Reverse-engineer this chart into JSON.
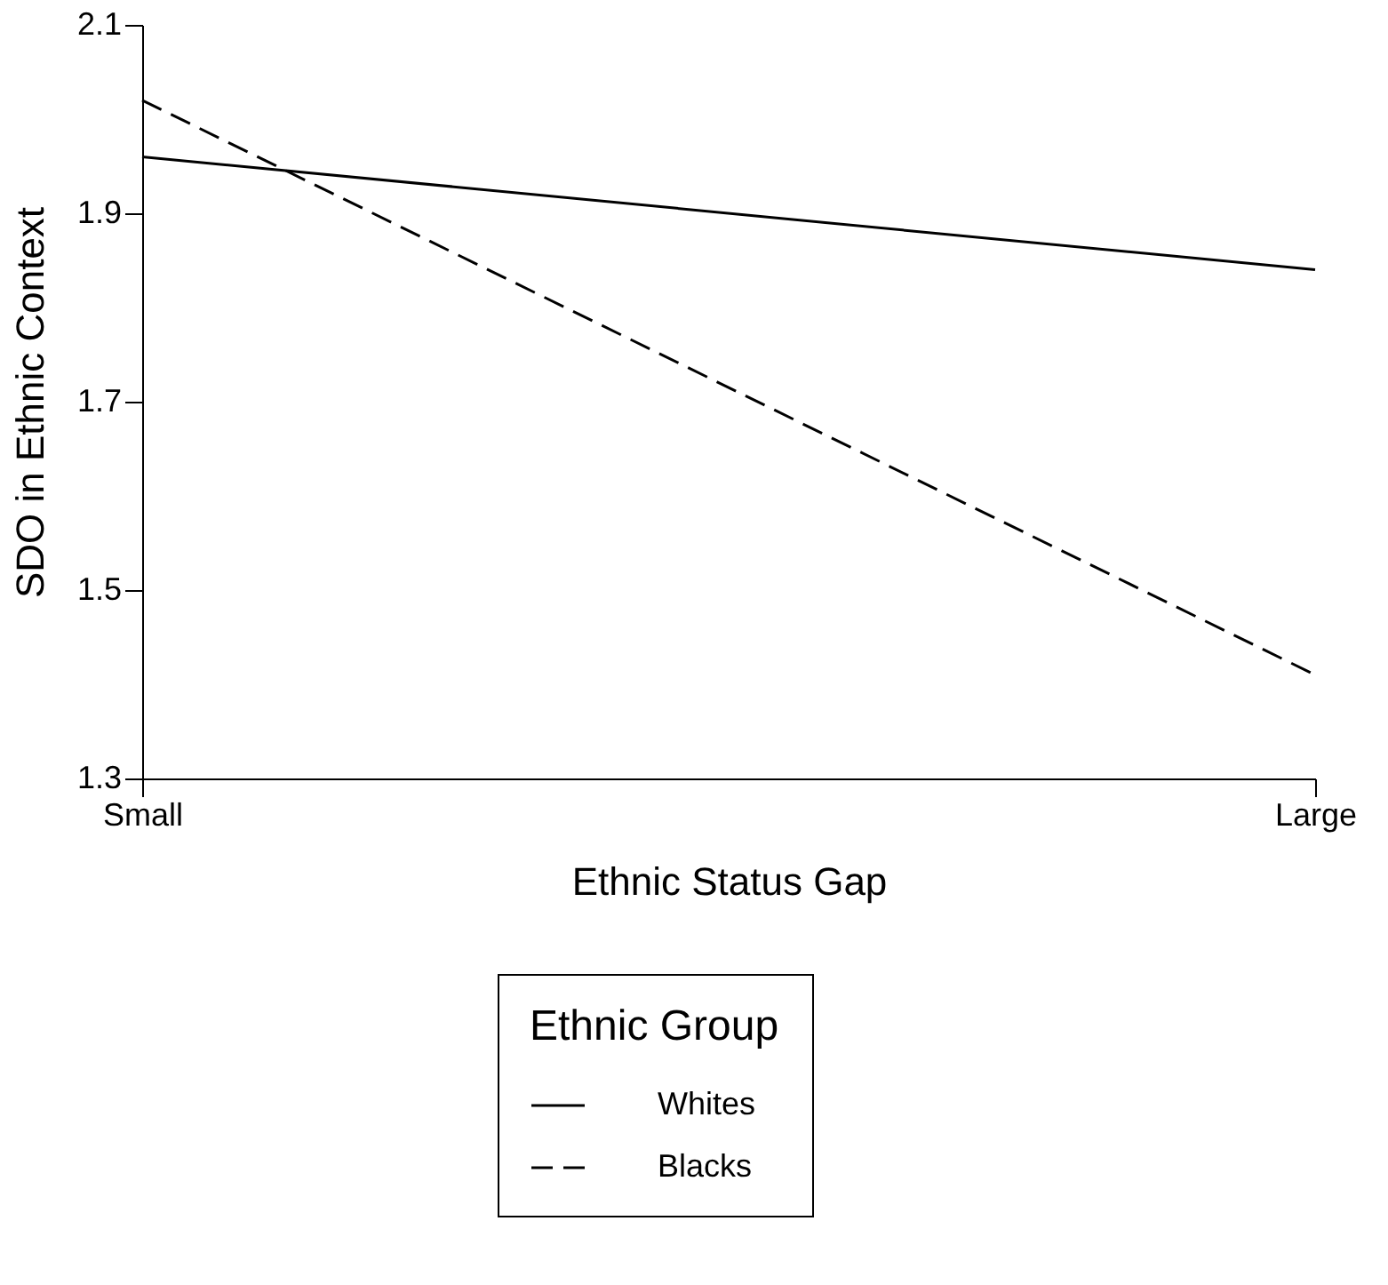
{
  "chart_data": {
    "type": "line",
    "xlabel": "Ethnic Status Gap",
    "ylabel": "SDO in Ethnic Context",
    "legend_title": "Ethnic Group",
    "categories": [
      "Small",
      "Large"
    ],
    "series": [
      {
        "name": "Whites",
        "color": "#000000",
        "line_style": "solid",
        "values": [
          1.96,
          1.84
        ]
      },
      {
        "name": "Blacks",
        "color": "#000000",
        "line_style": "dashed",
        "values": [
          2.02,
          1.41
        ]
      }
    ],
    "ylim": [
      1.3,
      2.1
    ],
    "yticks": [
      1.3,
      1.5,
      1.7,
      1.9,
      2.1
    ],
    "grid": false,
    "legend": "bottom",
    "marker": "none"
  }
}
